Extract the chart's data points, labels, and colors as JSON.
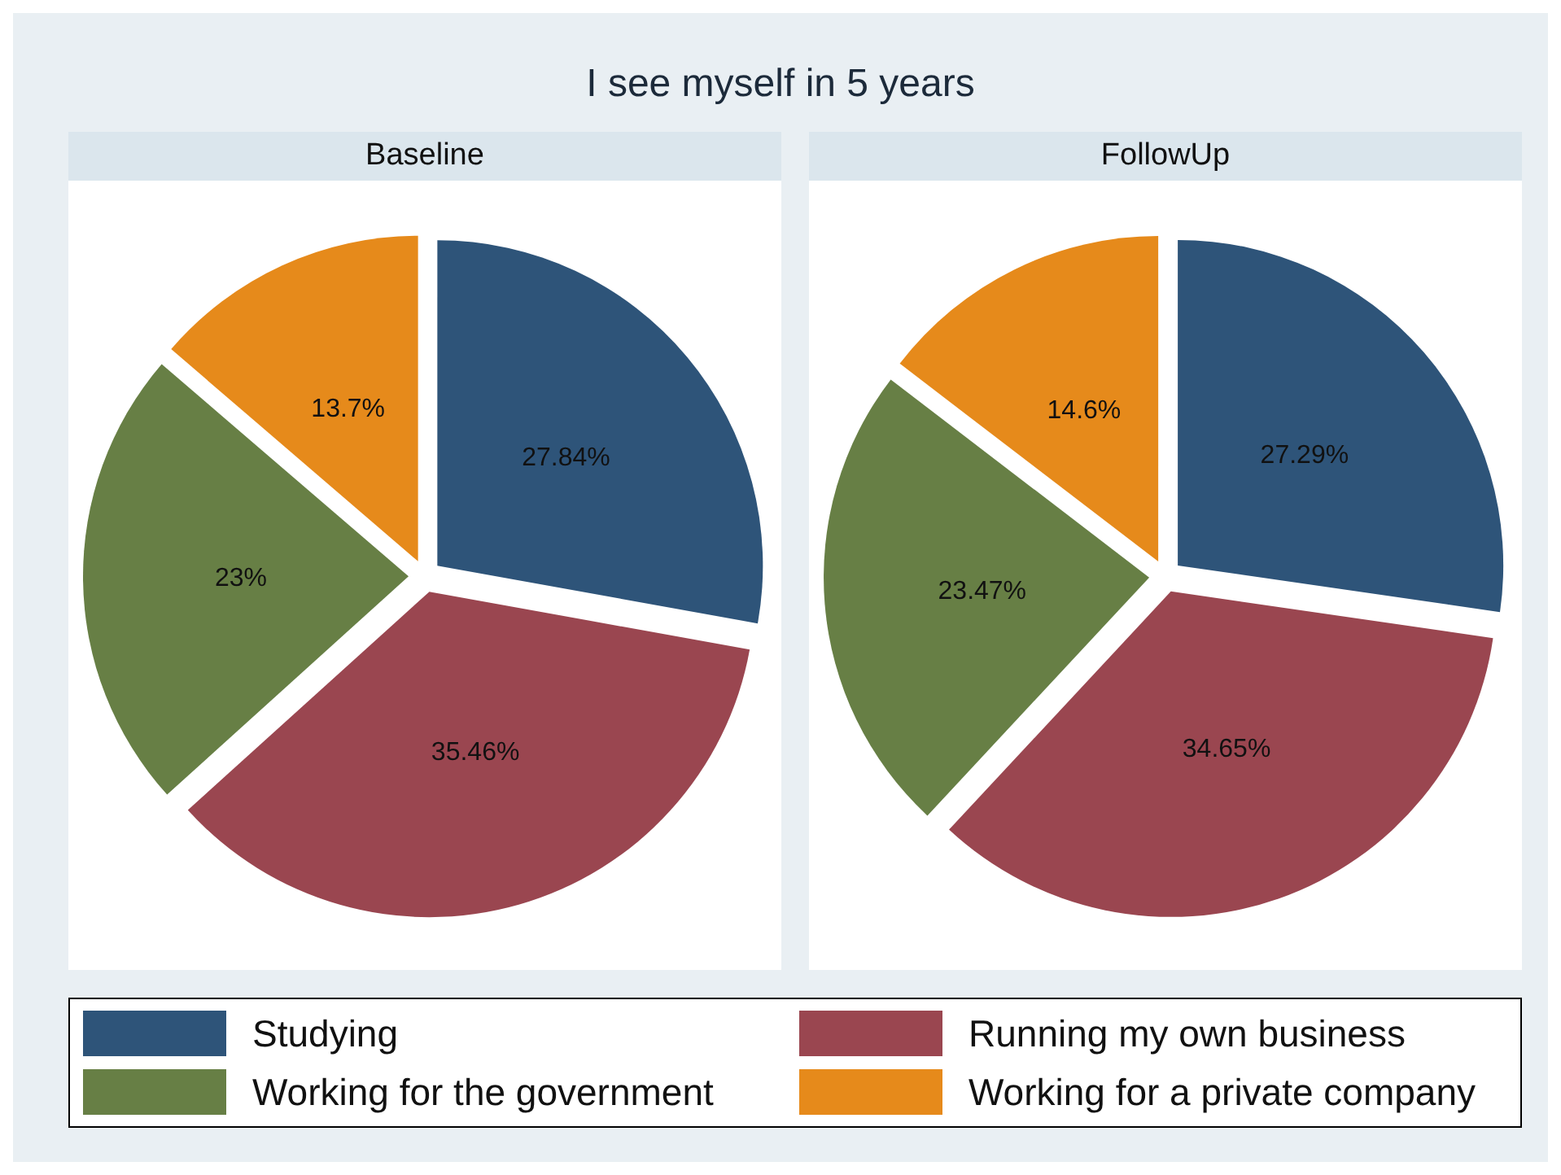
{
  "chart_data": [
    {
      "type": "pie",
      "title": "I see myself in 5 years",
      "subtitle": "Baseline",
      "categories": [
        "Studying",
        "Running my own business",
        "Working for the government",
        "Working for a private company"
      ],
      "values": [
        27.84,
        35.46,
        23,
        13.7
      ],
      "value_labels": [
        "27.84%",
        "35.46%",
        "23%",
        "13.7%"
      ],
      "colors": [
        "#2e5479",
        "#9a4650",
        "#677f45",
        "#e68a1b"
      ],
      "legend": "bottom"
    },
    {
      "type": "pie",
      "subtitle": "FollowUp",
      "categories": [
        null,
        null,
        null,
        null
      ],
      "values": [
        27.29,
        34.65,
        23.47,
        14.6
      ],
      "value_labels": [
        "27.29%",
        "34.65%",
        "23.47%",
        "14.6%"
      ],
      "colors": [
        "#2e5479",
        "#9a4650",
        "#677f45",
        "#e68a1b"
      ]
    }
  ]
}
